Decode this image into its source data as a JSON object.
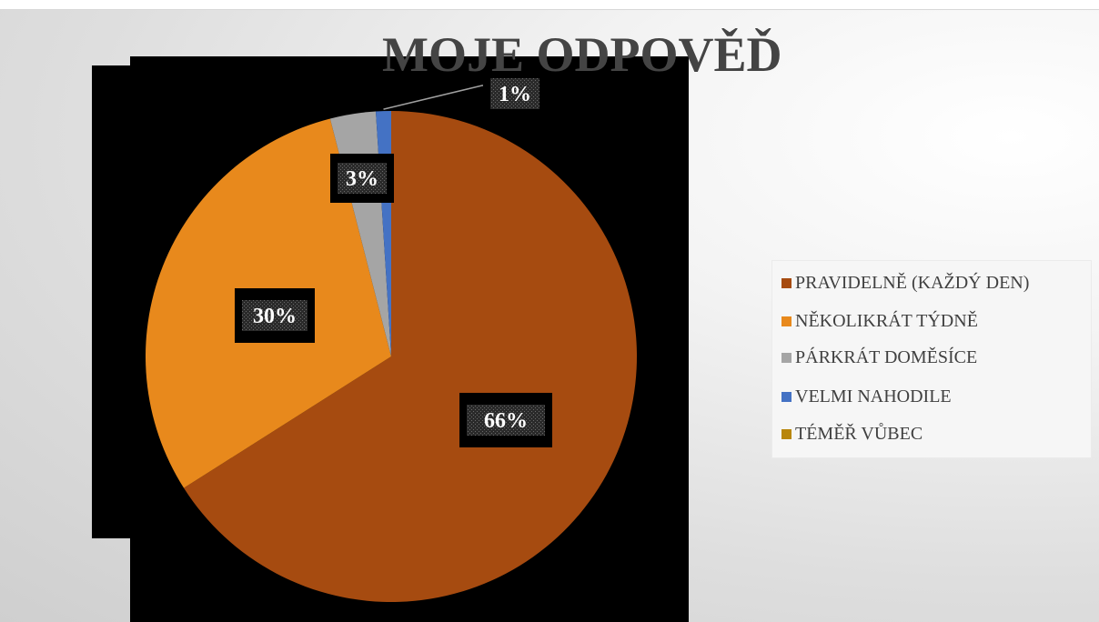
{
  "chart_data": {
    "type": "pie",
    "title": "MOJE ODPOVĚĎ",
    "categories": [
      "PRAVIDELNĚ (KAŽDÝ DEN)",
      "NĚKOLIKRÁT TÝDNĚ",
      "PÁRKRÁT DOMĚSÍCE",
      "VELMI NAHODILE",
      "TÉMĚŘ VŮBEC"
    ],
    "values": [
      66,
      30,
      3,
      1,
      0
    ],
    "data_labels": [
      "66%",
      "30%",
      "3%",
      "1%",
      ""
    ],
    "colors": [
      "#a64b10",
      "#e8891c",
      "#a5a5a5",
      "#4472c4",
      "#b8860b"
    ],
    "legend_position": "right"
  }
}
